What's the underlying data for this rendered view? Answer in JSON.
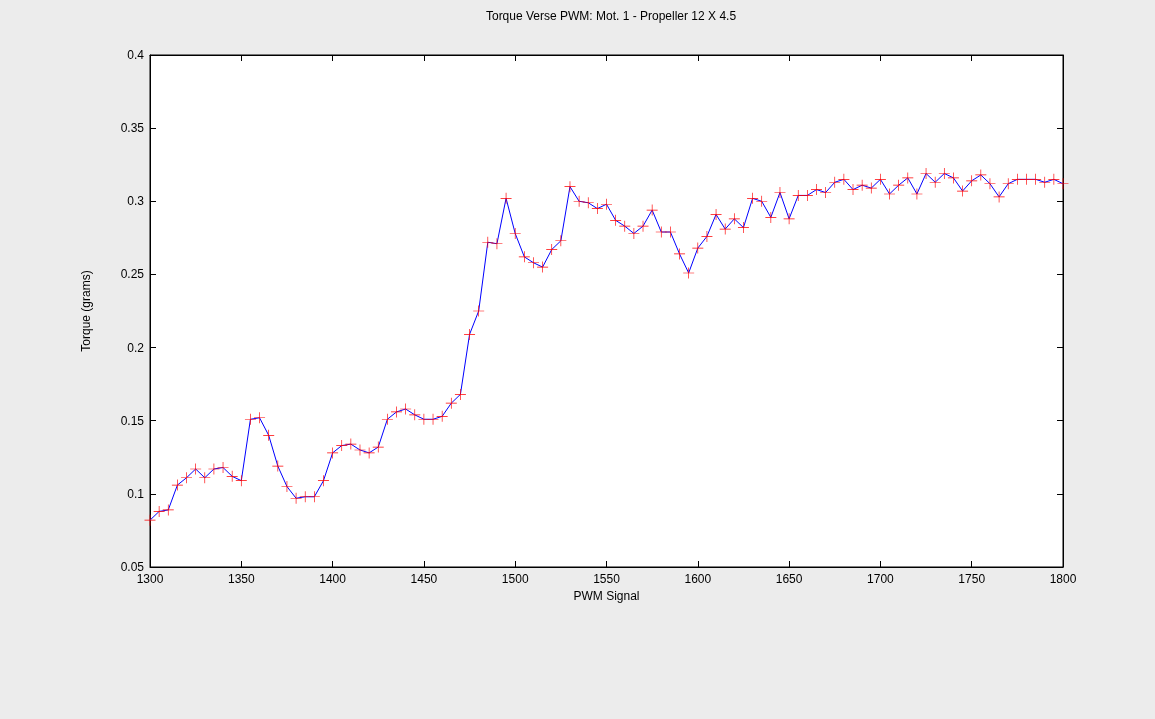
{
  "chart_data": {
    "type": "line",
    "title": "Torque Verse PWM: Mot. 1 - Propeller 12 X 4.5",
    "xlabel": "PWM Signal",
    "ylabel": "Torque (grams)",
    "x": [
      1300,
      1305,
      1310,
      1315,
      1320,
      1325,
      1330,
      1335,
      1340,
      1345,
      1350,
      1355,
      1360,
      1365,
      1370,
      1375,
      1380,
      1385,
      1390,
      1395,
      1400,
      1405,
      1410,
      1415,
      1420,
      1425,
      1430,
      1435,
      1440,
      1445,
      1450,
      1455,
      1460,
      1465,
      1470,
      1475,
      1480,
      1485,
      1490,
      1495,
      1500,
      1505,
      1510,
      1515,
      1520,
      1525,
      1530,
      1535,
      1540,
      1545,
      1550,
      1555,
      1560,
      1565,
      1570,
      1575,
      1580,
      1585,
      1590,
      1595,
      1600,
      1605,
      1610,
      1615,
      1620,
      1625,
      1630,
      1635,
      1640,
      1645,
      1650,
      1655,
      1660,
      1665,
      1670,
      1675,
      1680,
      1685,
      1690,
      1695,
      1700,
      1705,
      1710,
      1715,
      1720,
      1725,
      1730,
      1735,
      1740,
      1745,
      1750,
      1755,
      1760,
      1765,
      1770,
      1775,
      1780,
      1785,
      1790,
      1795,
      1800
    ],
    "series": [
      {
        "color": "#0000ff",
        "colors": [
          "#ff0000",
          "#ff0000",
          "#ff0000",
          "#ff0000",
          "#ff0000",
          "#ff0000",
          "#ff0000",
          "#ff0000",
          "#ff0000",
          "#ff0000",
          "#ff0000",
          "#ff0000",
          "#ff0000",
          "#ff0000",
          "#ff0000",
          "#ff0000",
          "#ff0000",
          "#ff0000",
          "#ff0000",
          "#ff0000",
          "#ff0000",
          "#ff0000",
          "#ff0000",
          "#ff0000",
          "#ff0000",
          "#ff0000",
          "#ff0000",
          "#ff0000",
          "#ff0000",
          "#ff0000",
          "#ff0000",
          "#ff0000",
          "#ff0000",
          "#ff0000",
          "#ff0000",
          "#ff0000",
          "#ff0000",
          "#ff0000",
          "#ff0000",
          "#ff0000",
          "#ff0000",
          "#ff0000",
          "#ff0000",
          "#ff0000",
          "#ff0000",
          "#ff0000",
          "#ff0000",
          "#ff0000",
          "#ff0000",
          "#ff0000",
          "#ff0000",
          "#ff0000",
          "#ff0000",
          "#ff0000",
          "#ff0000",
          "#ff0000",
          "#ff0000",
          "#ff0000",
          "#ff0000",
          "#ff0000",
          "#ff0000",
          "#ff0000",
          "#ff0000",
          "#ff0000",
          "#ff0000",
          "#ff0000",
          "#ff0000",
          "#ff0000",
          "#ff0000",
          "#ff0000",
          "#ff0000",
          "#ff0000",
          "#ff0000",
          "#ff0000",
          "#ff0000",
          "#ff0000",
          "#ff0000",
          "#ff0000",
          "#ff0000",
          "#ff0000",
          "#ff0000",
          "#ff0000",
          "#ff0000",
          "#ff0000",
          "#ff0000",
          "#ff0000",
          "#ff0000",
          "#ff0000",
          "#ff0000",
          "#ff0000",
          "#ff0000",
          "#ff0000",
          "#ff0000",
          "#ff0000",
          "#ff0000",
          "#ff0000",
          "#ff0000",
          "#ff0000",
          "#ff0000",
          "#ff0000",
          "#ff0000"
        ],
        "values": [
          0.082,
          0.088,
          0.089,
          0.106,
          0.111,
          0.117,
          0.111,
          0.117,
          0.118,
          0.112,
          0.109,
          0.151,
          0.152,
          0.14,
          0.119,
          0.105,
          0.097,
          0.098,
          0.098,
          0.109,
          0.128,
          0.133,
          0.134,
          0.13,
          0.128,
          0.132,
          0.151,
          0.156,
          0.158,
          0.154,
          0.151,
          0.151,
          0.153,
          0.162,
          0.168,
          0.209,
          0.225,
          0.272,
          0.271,
          0.302,
          0.278,
          0.262,
          0.258,
          0.255,
          0.267,
          0.273,
          0.31,
          0.3,
          0.299,
          0.295,
          0.298,
          0.287,
          0.283,
          0.278,
          0.283,
          0.294,
          0.279,
          0.279,
          0.264,
          0.251,
          0.268,
          0.276,
          0.291,
          0.281,
          0.288,
          0.282,
          0.302,
          0.3,
          0.289,
          0.306,
          0.288,
          0.304,
          0.304,
          0.308,
          0.306,
          0.313,
          0.315,
          0.308,
          0.311,
          0.309,
          0.315,
          0.305,
          0.311,
          0.316,
          0.305,
          0.319,
          0.313,
          0.319,
          0.316,
          0.307,
          0.314,
          0.318,
          0.312,
          0.303,
          0.312,
          0.315,
          0.315,
          0.315,
          0.313,
          0.315,
          0.312
        ]
      }
    ],
    "xlim": [
      1300,
      1800
    ],
    "xticks": [
      1300,
      1350,
      1400,
      1450,
      1500,
      1550,
      1600,
      1650,
      1700,
      1750,
      1800
    ],
    "ylim": [
      0.05,
      0.4
    ],
    "yticks": [
      0.05,
      0.1,
      0.15,
      0.2,
      0.25,
      0.3,
      0.35,
      0.4
    ],
    "marker": "cross",
    "line_style": "solid"
  }
}
